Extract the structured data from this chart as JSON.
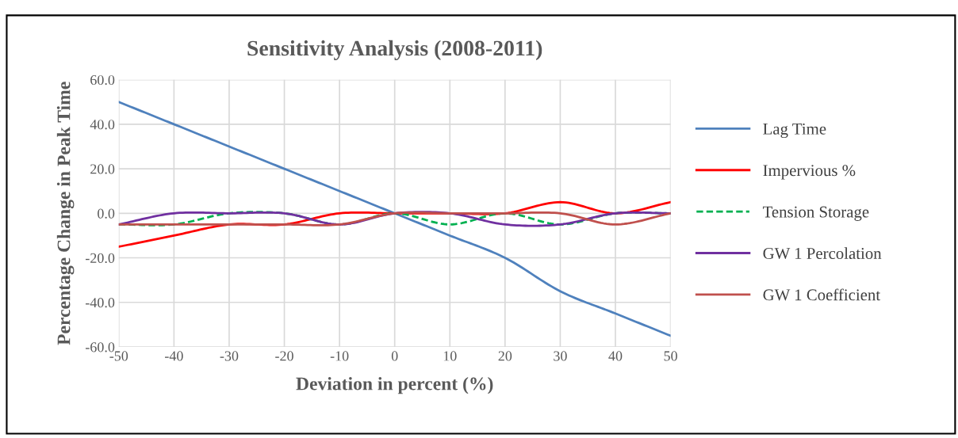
{
  "chart_data": {
    "type": "line",
    "title": "Sensitivity Analysis (2008-2011)",
    "xlabel": "Deviation in percent (%)",
    "ylabel": "Percentage Change in Peak Time",
    "x": [
      -50,
      -40,
      -30,
      -20,
      -10,
      0,
      10,
      20,
      30,
      40,
      50
    ],
    "series": [
      {
        "name": "Lag Time",
        "color": "#4f81bd",
        "values": [
          50,
          40,
          30,
          20,
          10,
          0,
          -10,
          -20,
          -35,
          -45,
          -55
        ]
      },
      {
        "name": "Impervious %",
        "color": "#ff0000",
        "values": [
          -15,
          -10,
          -5,
          -5,
          0,
          0,
          0,
          0,
          5,
          0,
          5
        ]
      },
      {
        "name": "Tension Storage",
        "color": "#00b050",
        "line_style": "dashed",
        "values": [
          -5,
          -5,
          0,
          0,
          -5,
          0,
          -5,
          0,
          -5,
          0,
          0
        ]
      },
      {
        "name": "GW 1 Percolation",
        "color": "#7030a0",
        "values": [
          -5,
          0,
          0,
          0,
          -5,
          0,
          0,
          -5,
          -5,
          0,
          0
        ]
      },
      {
        "name": "GW 1 Coefficient",
        "color": "#c0504d",
        "values": [
          -5,
          -5,
          -5,
          -5,
          -5,
          0,
          0,
          0,
          0,
          -5,
          0
        ]
      }
    ],
    "xlim": [
      -50,
      50
    ],
    "xticks": [
      -50,
      -40,
      -30,
      -20,
      -10,
      0,
      10,
      20,
      30,
      40,
      50
    ],
    "ylim": [
      -60,
      60
    ],
    "yticks": [
      {
        "value": -60,
        "label": "-60.0"
      },
      {
        "value": -40,
        "label": "-40.0"
      },
      {
        "value": -20,
        "label": "-20.0"
      },
      {
        "value": 0,
        "label": "0.0"
      },
      {
        "value": 20,
        "label": "20.0"
      },
      {
        "value": 40,
        "label": "40.0"
      },
      {
        "value": 60,
        "label": "60.0"
      }
    ],
    "grid": true,
    "legend": "right",
    "line_style": "solid"
  }
}
